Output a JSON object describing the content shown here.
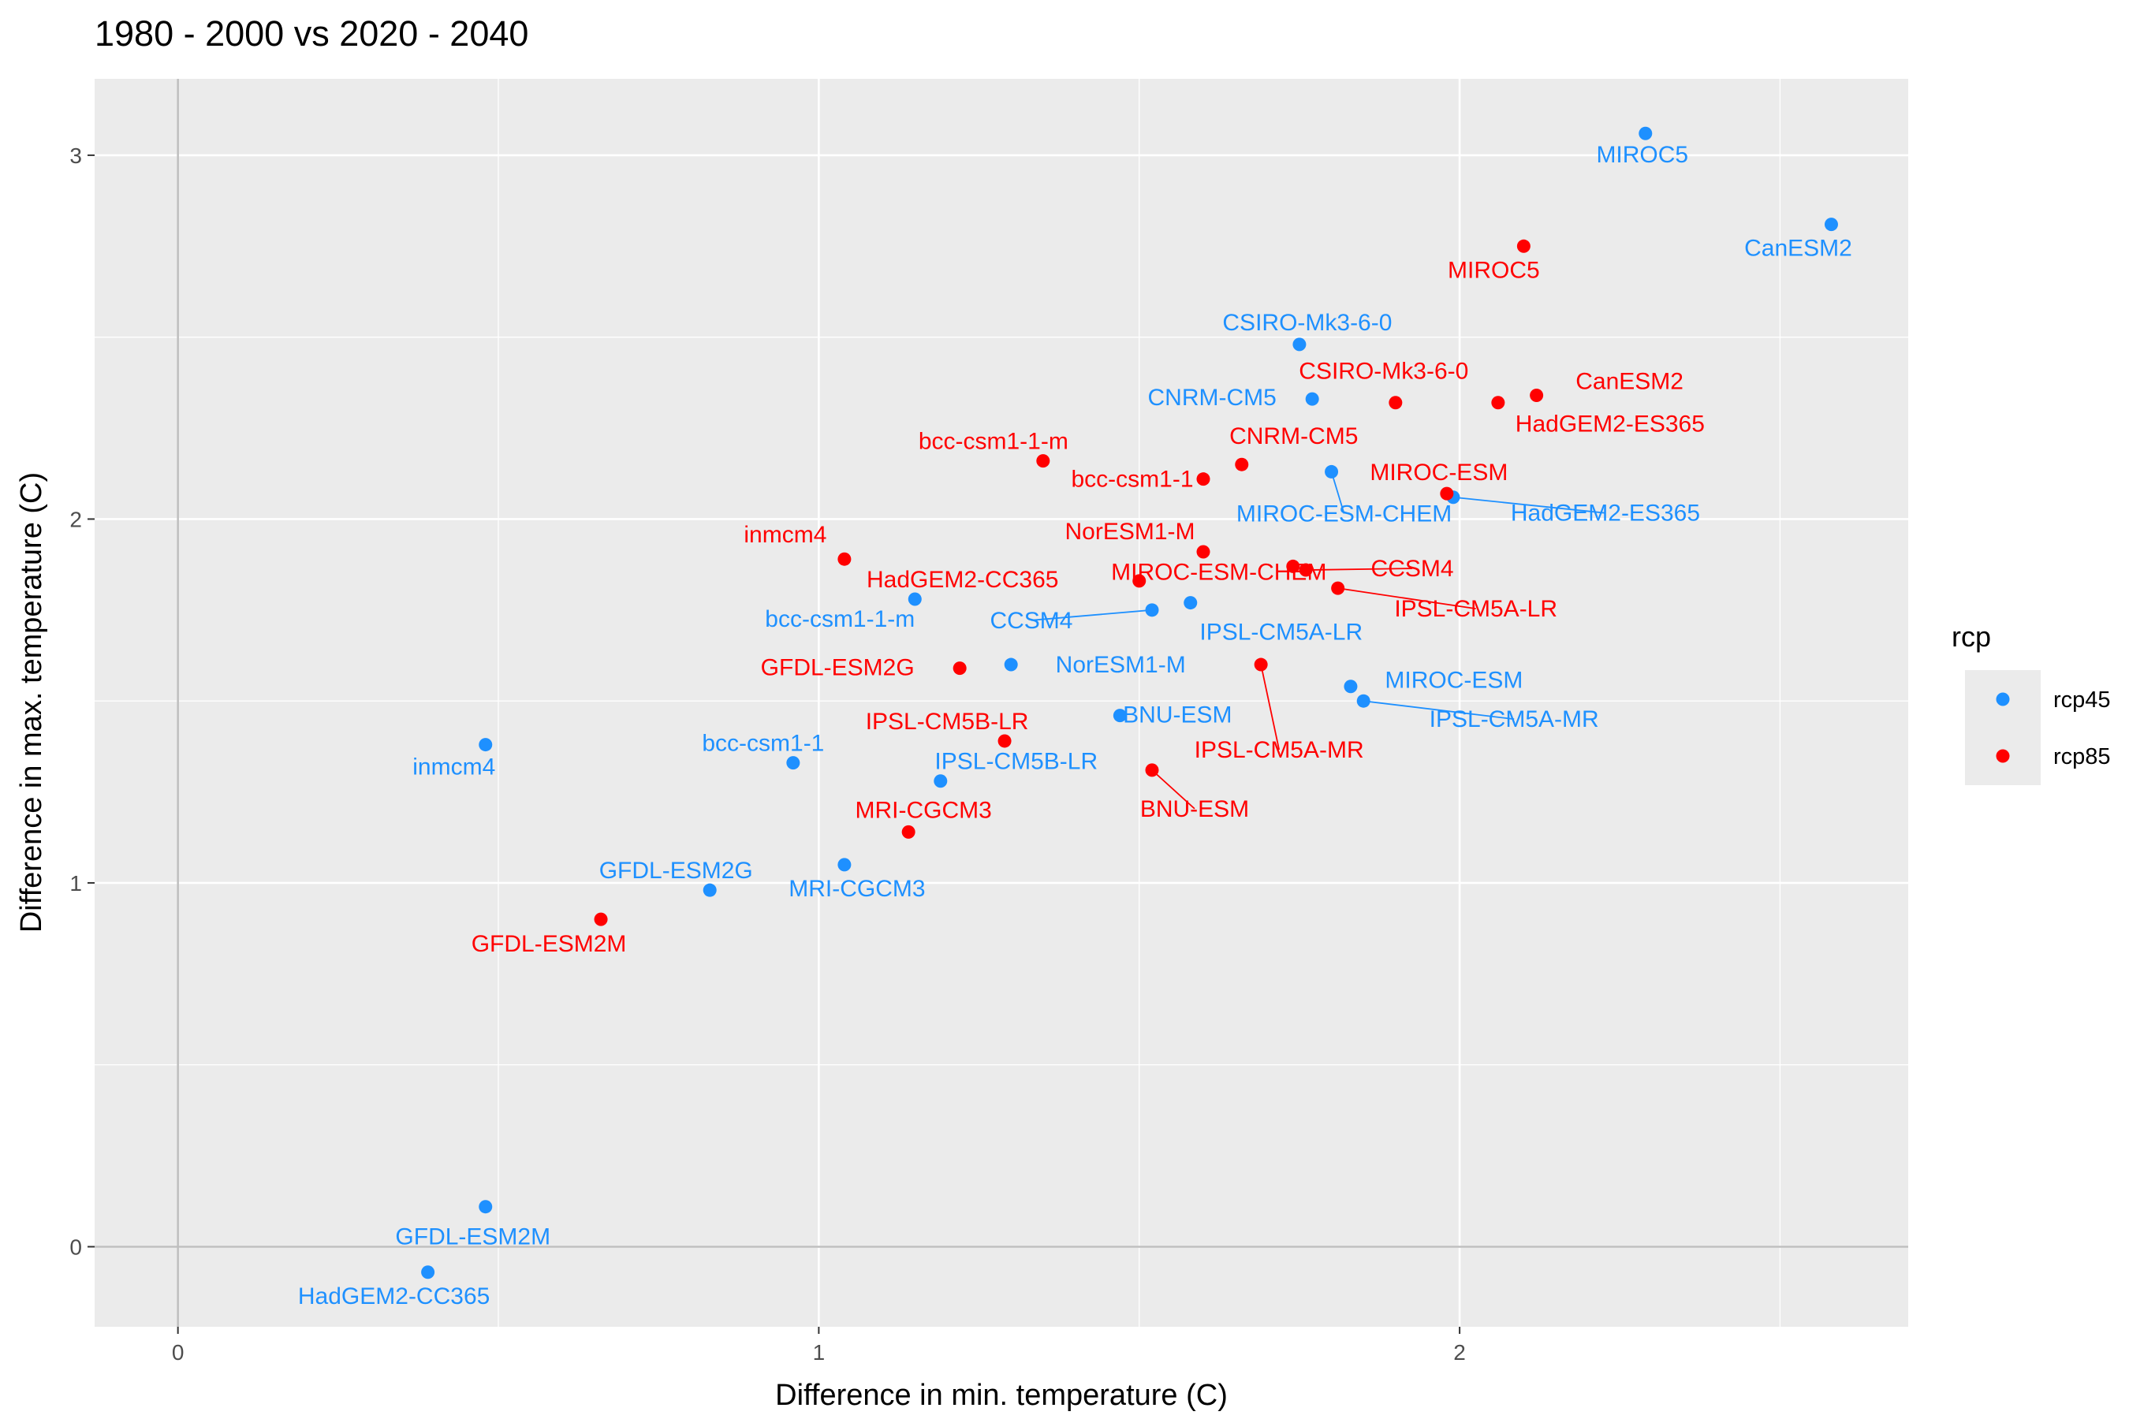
{
  "chart_data": {
    "type": "scatter",
    "title": "1980 - 2000  vs  2020 - 2040",
    "xlabel": "Difference in min. temperature (C)",
    "ylabel": "Difference in max. temperature (C)",
    "xlim": [
      -0.13,
      2.7
    ],
    "ylim": [
      -0.22,
      3.21
    ],
    "x_ticks": [
      0,
      1,
      2
    ],
    "y_ticks": [
      0,
      1,
      2,
      3
    ],
    "grid": true,
    "reference_lines": {
      "x": 0,
      "y": 0
    },
    "legend": {
      "title": "rcp",
      "position": "right"
    },
    "series": [
      {
        "name": "rcp45",
        "color": "#1E90FF",
        "points": [
          {
            "x": 2.29,
            "y": 3.06,
            "label": "MIROC5"
          },
          {
            "x": 2.58,
            "y": 2.81,
            "label": "CanESM2"
          },
          {
            "x": 1.75,
            "y": 2.48,
            "label": "CSIRO-Mk3-6-0"
          },
          {
            "x": 1.77,
            "y": 2.33,
            "label": "CNRM-CM5"
          },
          {
            "x": 1.8,
            "y": 2.13,
            "label": "MIROC-ESM-CHEM"
          },
          {
            "x": 1.99,
            "y": 2.06,
            "label": "HadGEM2-ES365"
          },
          {
            "x": 1.15,
            "y": 1.78,
            "label": "bcc-csm1-1-m"
          },
          {
            "x": 1.52,
            "y": 1.75,
            "label": "CCSM4"
          },
          {
            "x": 1.58,
            "y": 1.77,
            "label": "IPSL-CM5A-LR"
          },
          {
            "x": 1.3,
            "y": 1.6,
            "label": "NorESM1-M"
          },
          {
            "x": 1.83,
            "y": 1.54,
            "label": "MIROC-ESM"
          },
          {
            "x": 1.85,
            "y": 1.5,
            "label": "IPSL-CM5A-MR"
          },
          {
            "x": 1.47,
            "y": 1.46,
            "label": "BNU-ESM"
          },
          {
            "x": 0.48,
            "y": 1.38,
            "label": "inmcm4"
          },
          {
            "x": 0.96,
            "y": 1.33,
            "label": "bcc-csm1-1"
          },
          {
            "x": 1.19,
            "y": 1.28,
            "label": "IPSL-CM5B-LR"
          },
          {
            "x": 1.04,
            "y": 1.05,
            "label": "MRI-CGCM3"
          },
          {
            "x": 0.83,
            "y": 0.98,
            "label": "GFDL-ESM2G"
          },
          {
            "x": 0.48,
            "y": 0.11,
            "label": "GFDL-ESM2M"
          },
          {
            "x": 0.39,
            "y": -0.07,
            "label": "HadGEM2-CC365"
          }
        ]
      },
      {
        "name": "rcp85",
        "color": "#FF0000",
        "points": [
          {
            "x": 2.1,
            "y": 2.75,
            "label": "MIROC5"
          },
          {
            "x": 1.9,
            "y": 2.32,
            "label": "CSIRO-Mk3-6-0"
          },
          {
            "x": 2.12,
            "y": 2.34,
            "label": "CanESM2"
          },
          {
            "x": 2.06,
            "y": 2.32,
            "label": "HadGEM2-ES365"
          },
          {
            "x": 1.35,
            "y": 2.16,
            "label": "bcc-csm1-1-m"
          },
          {
            "x": 1.66,
            "y": 2.15,
            "label": "CNRM-CM5"
          },
          {
            "x": 1.6,
            "y": 2.11,
            "label": "bcc-csm1-1"
          },
          {
            "x": 1.98,
            "y": 2.07,
            "label": "MIROC-ESM"
          },
          {
            "x": 1.6,
            "y": 1.91,
            "label": "NorESM1-M"
          },
          {
            "x": 1.04,
            "y": 1.89,
            "label": "inmcm4"
          },
          {
            "x": 1.5,
            "y": 1.83,
            "label": "HadGEM2-CC365"
          },
          {
            "x": 1.74,
            "y": 1.87,
            "label": "MIROC-ESM-CHEM"
          },
          {
            "x": 1.76,
            "y": 1.86,
            "label": "CCSM4"
          },
          {
            "x": 1.81,
            "y": 1.81,
            "label": "IPSL-CM5A-LR"
          },
          {
            "x": 1.22,
            "y": 1.59,
            "label": "GFDL-ESM2G"
          },
          {
            "x": 1.69,
            "y": 1.6,
            "label": "IPSL-CM5A-MR"
          },
          {
            "x": 1.29,
            "y": 1.39,
            "label": "IPSL-CM5B-LR"
          },
          {
            "x": 1.52,
            "y": 1.31,
            "label": "BNU-ESM"
          },
          {
            "x": 1.14,
            "y": 1.14,
            "label": "MRI-CGCM3"
          },
          {
            "x": 0.66,
            "y": 0.9,
            "label": "GFDL-ESM2M"
          }
        ]
      }
    ]
  }
}
